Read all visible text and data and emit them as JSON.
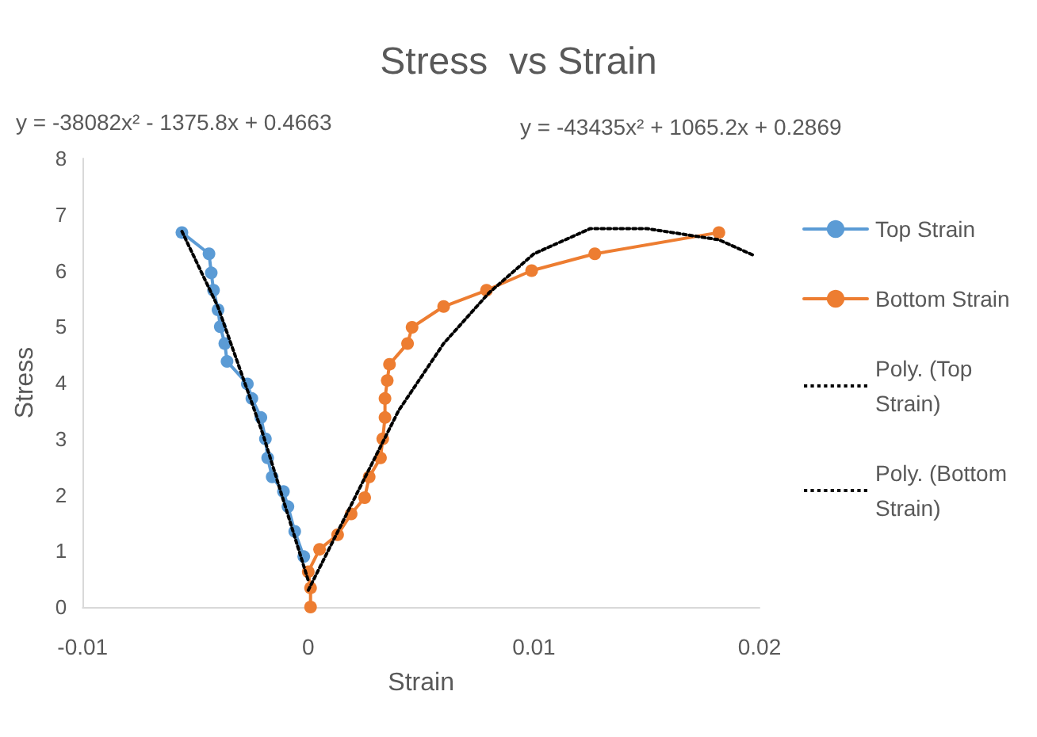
{
  "chart_data": {
    "type": "line",
    "title": "Stress  vs Strain",
    "xlabel": "Strain",
    "ylabel": "Stress",
    "annotations": [
      "y = -38082x² - 1375.8x + 0.4663",
      "y = -43435x² + 1065.2x + 0.2869"
    ],
    "xlim": [
      -0.01,
      0.02
    ],
    "xticks": [
      -0.01,
      0,
      0.01,
      0.02
    ],
    "ylim": [
      0,
      8
    ],
    "yticks": [
      0,
      1,
      2,
      3,
      4,
      5,
      6,
      7,
      8
    ],
    "grid": false,
    "legend": "right",
    "marker": "circle",
    "series": [
      {
        "name": "Top Strain",
        "color": "#5b9bd5",
        "x": [
          -0.0056,
          -0.0044,
          -0.0043,
          -0.0042,
          -0.004,
          -0.0039,
          -0.0037,
          -0.0036,
          -0.0027,
          -0.0025,
          -0.0021,
          -0.0019,
          -0.0018,
          -0.0016,
          -0.0011,
          -0.0009,
          -0.0006,
          -0.0002
        ],
        "values": [
          6.68,
          6.3,
          5.96,
          5.65,
          5.3,
          5.0,
          4.7,
          4.38,
          3.98,
          3.72,
          3.38,
          3.0,
          2.66,
          2.32,
          2.06,
          1.79,
          1.35,
          0.9
        ]
      },
      {
        "name": "Bottom Strain",
        "color": "#ed7d31",
        "x": [
          0.0001,
          0.0001,
          0,
          0.0005,
          0.0013,
          0.0019,
          0.0025,
          0.0027,
          0.0032,
          0.0033,
          0.0034,
          0.0034,
          0.0035,
          0.0036,
          0.0044,
          0.0046,
          0.006,
          0.0079,
          0.0099,
          0.0127,
          0.0182
        ],
        "values": [
          0,
          0.34,
          0.63,
          1.03,
          1.29,
          1.66,
          1.95,
          2.32,
          2.66,
          3.0,
          3.38,
          3.72,
          4.04,
          4.33,
          4.7,
          4.99,
          5.36,
          5.65,
          6.0,
          6.3,
          6.68
        ]
      },
      {
        "name": "Poly. (Top Strain)",
        "marker": "none",
        "line_style": "dotted",
        "color": "#000000",
        "x": [
          -0.0056,
          -0.004,
          -0.002,
          0
        ],
        "values": [
          6.7,
          5.35,
          3.07,
          0.47
        ]
      },
      {
        "name": "Poly. (Bottom Strain)",
        "marker": "none",
        "line_style": "dotted",
        "color": "#000000",
        "x": [
          0,
          0.002,
          0.004,
          0.006,
          0.008,
          0.01,
          0.0125,
          0.015,
          0.0182,
          0.0197
        ],
        "values": [
          0.3,
          1.9,
          3.5,
          4.7,
          5.6,
          6.3,
          6.75,
          6.75,
          6.55,
          6.28
        ]
      }
    ]
  }
}
